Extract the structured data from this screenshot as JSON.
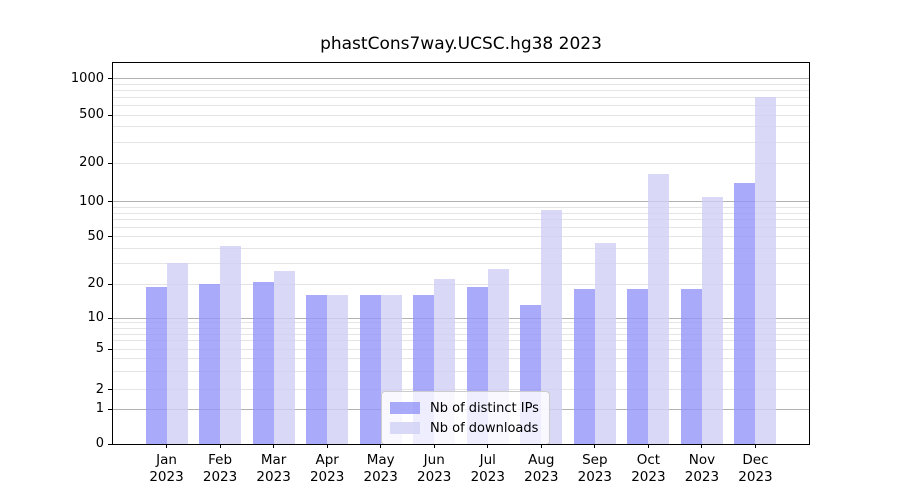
{
  "title": "phastCons7way.UCSC.hg38 2023",
  "chart_data": {
    "type": "bar",
    "title": "phastCons7way.UCSC.hg38 2023",
    "categories": [
      "Jan 2023",
      "Feb 2023",
      "Mar 2023",
      "Apr 2023",
      "May 2023",
      "Jun 2023",
      "Jul 2023",
      "Aug 2023",
      "Sep 2023",
      "Oct 2023",
      "Nov 2023",
      "Dec 2023"
    ],
    "x_tick_months": [
      "Jan",
      "Feb",
      "Mar",
      "Apr",
      "May",
      "Jun",
      "Jul",
      "Aug",
      "Sep",
      "Oct",
      "Nov",
      "Dec"
    ],
    "x_tick_years": [
      "2023",
      "2023",
      "2023",
      "2023",
      "2023",
      "2023",
      "2023",
      "2023",
      "2023",
      "2023",
      "2023",
      "2023"
    ],
    "series": [
      {
        "name": "Nb of distinct IPs",
        "color": "#9595f9",
        "values": [
          19,
          20,
          21,
          16,
          16,
          16,
          19,
          13,
          18,
          18,
          18,
          140
        ]
      },
      {
        "name": "Nb of downloads",
        "color": "#d0d0f5",
        "values": [
          30,
          42,
          26,
          16,
          16,
          22,
          27,
          85,
          44,
          165,
          110,
          700
        ]
      }
    ],
    "yscale": "symlog",
    "yticks": [
      0,
      1,
      2,
      5,
      10,
      20,
      50,
      100,
      200,
      500,
      1000
    ],
    "y_minor_gridlines": [
      2,
      3,
      4,
      5,
      6,
      7,
      8,
      9,
      20,
      30,
      40,
      50,
      60,
      70,
      80,
      90,
      200,
      300,
      400,
      500,
      600,
      700,
      800,
      900
    ],
    "y_major_gridlines": [
      1,
      10,
      100,
      1000
    ],
    "ylim": [
      0,
      1400
    ],
    "grid": true,
    "legend_position": "lower center",
    "xlabel": "",
    "ylabel": ""
  },
  "colors": {
    "bar_distinct_ips": "#9595f9",
    "bar_downloads": "#d0d0f5",
    "grid_major": "#b2b2b2",
    "grid_minor": "#e4e4e4",
    "axes": "#000000"
  }
}
